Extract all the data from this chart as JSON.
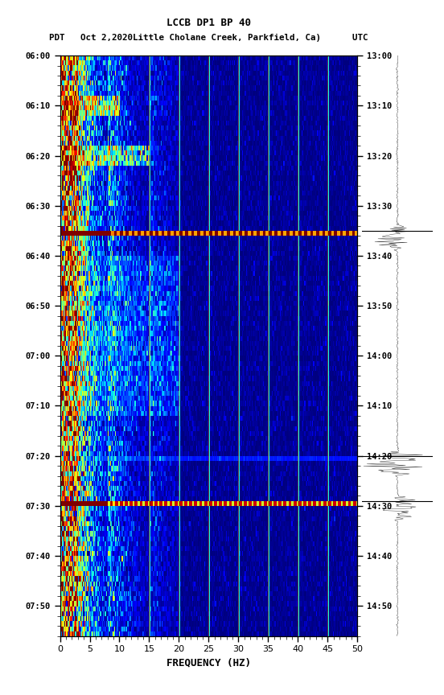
{
  "title_line1": "LCCB DP1 BP 40",
  "title_line2": "PDT   Oct 2,2020Little Cholane Creek, Parkfield, Ca)      UTC",
  "xlabel": "FREQUENCY (HZ)",
  "freq_min": 0,
  "freq_max": 50,
  "left_time_labels": [
    "06:00",
    "06:10",
    "06:20",
    "06:30",
    "06:40",
    "06:50",
    "07:00",
    "07:10",
    "07:20",
    "07:30",
    "07:40",
    "07:50"
  ],
  "right_time_labels": [
    "13:00",
    "13:10",
    "13:20",
    "13:30",
    "13:40",
    "13:50",
    "14:00",
    "14:10",
    "14:20",
    "14:30",
    "14:40",
    "14:50"
  ],
  "vertical_lines_hz": [
    15,
    20,
    25,
    30,
    35,
    40,
    45
  ],
  "colormap": "jet",
  "background_color": "#ffffff",
  "n_time_bins": 116,
  "n_freq_bins": 300,
  "band1_time": 35,
  "band2_time": 80,
  "band3_time": 89,
  "waveform_events": [
    35,
    80,
    89
  ],
  "waveform_hlines": [
    35,
    80,
    89
  ]
}
